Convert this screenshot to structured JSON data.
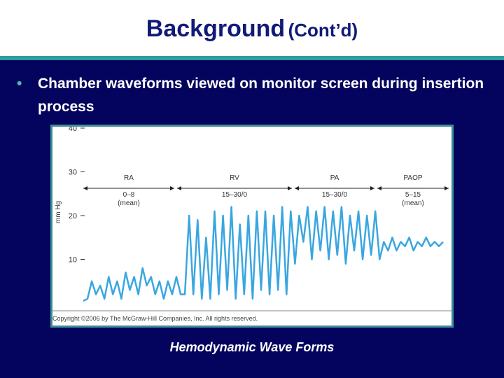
{
  "slide": {
    "title_main": "Background",
    "title_sub": "(Cont’d)",
    "bullet": "Chamber waveforms viewed on monitor screen during insertion process",
    "caption": "Hemodynamic Wave Forms"
  },
  "colors": {
    "background": "#04045e",
    "title": "#101a78",
    "rule": "#2e9e9a",
    "bullet_dot": "#4fb9b4",
    "waveform": "#3aa6e0"
  },
  "chart_data": {
    "type": "line",
    "ylabel": "mm Hg",
    "yticks": [
      10,
      20,
      30,
      40
    ],
    "ylim": [
      0,
      40
    ],
    "regions": [
      {
        "name": "RA",
        "range": "0–8",
        "note": "(mean)"
      },
      {
        "name": "RV",
        "range": "15–30/0"
      },
      {
        "name": "PA",
        "range": "15–30/0"
      },
      {
        "name": "PAOP",
        "range": "5–15",
        "note": "(mean)"
      }
    ],
    "series": [
      {
        "values": [
          0.5,
          1,
          5,
          2,
          4,
          1,
          6,
          2,
          5,
          1,
          7,
          3,
          6,
          2,
          8,
          4,
          6,
          2,
          5,
          1,
          5,
          2,
          6,
          2,
          2,
          20,
          2,
          19,
          1,
          15,
          1,
          21,
          2,
          20,
          3,
          22,
          1,
          18,
          2,
          20,
          1,
          21,
          3,
          21,
          2,
          20,
          3,
          22,
          2,
          21,
          9,
          20,
          14,
          22,
          10,
          21,
          12,
          22,
          10,
          21,
          11,
          22,
          9,
          20,
          12,
          21,
          10,
          20,
          11,
          21,
          10,
          14,
          12,
          15,
          12,
          14,
          13,
          15,
          12,
          14,
          13,
          15,
          13,
          14,
          13,
          14
        ]
      }
    ],
    "copyright": "Copyright ©2006 by The McGraw-Hill Companies, Inc. All rights reserved."
  }
}
